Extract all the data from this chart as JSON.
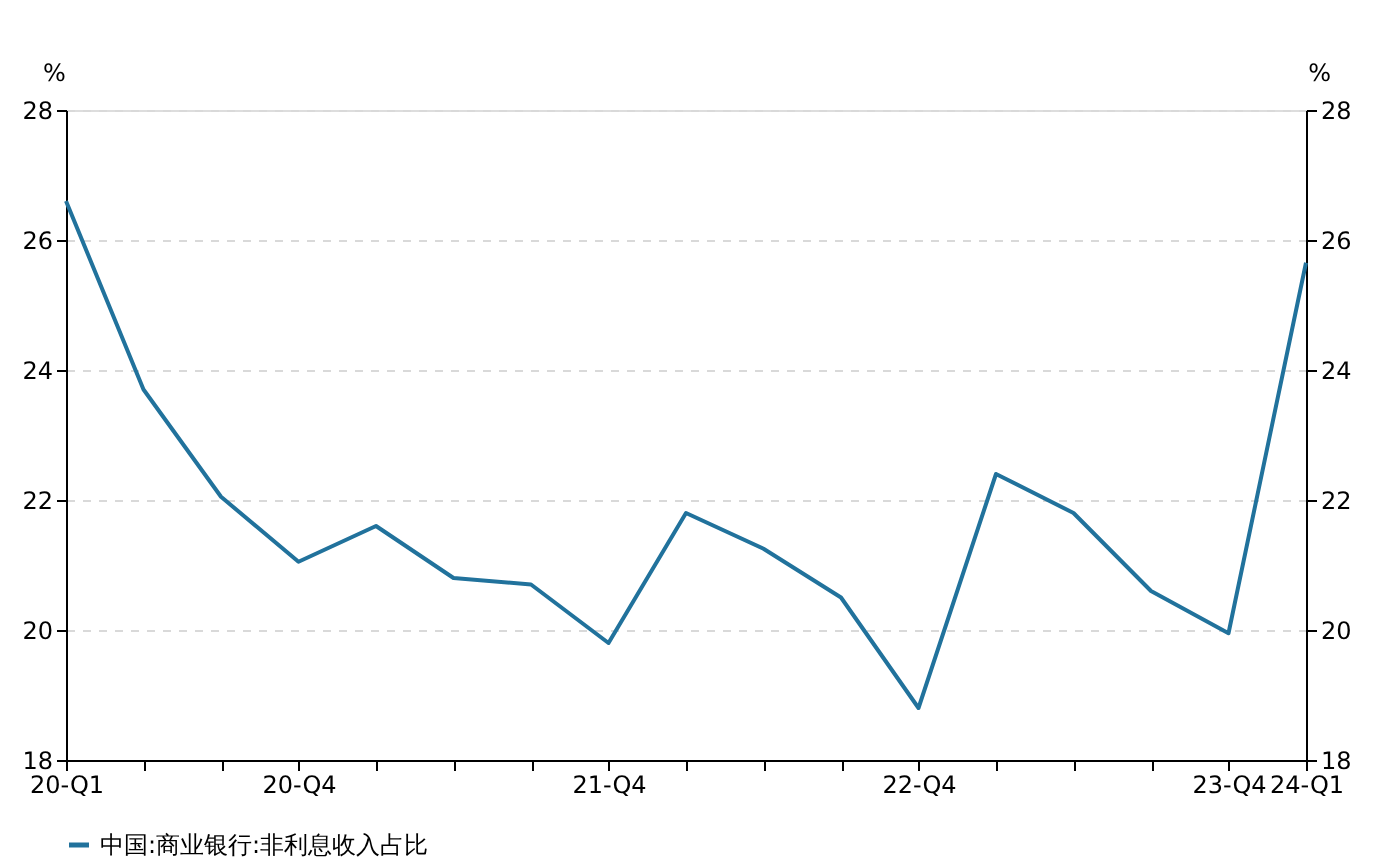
{
  "chart_data": {
    "type": "line",
    "categories": [
      "20-Q1",
      null,
      null,
      "20-Q4",
      null,
      null,
      null,
      "21-Q4",
      null,
      null,
      null,
      "22-Q4",
      null,
      null,
      null,
      "23-Q4",
      "24-Q1"
    ],
    "series": [
      {
        "name": "中国:商业银行:非利息收入占比",
        "color": "#21729c",
        "values": [
          26.6,
          23.7,
          22.05,
          21.05,
          21.6,
          20.8,
          20.7,
          19.8,
          21.8,
          21.25,
          20.5,
          18.8,
          22.4,
          21.8,
          20.6,
          19.95,
          25.65
        ]
      }
    ],
    "ylabel": "%",
    "y2label": "%",
    "ylim": [
      18,
      28
    ],
    "yticks": [
      18,
      20,
      22,
      24,
      26,
      28
    ],
    "y2lim": [
      18,
      28
    ],
    "y2ticks": [
      18,
      20,
      22,
      24,
      26,
      28
    ],
    "grid": "y",
    "line_style": "solid",
    "legend": "bottom",
    "marker": "none"
  }
}
